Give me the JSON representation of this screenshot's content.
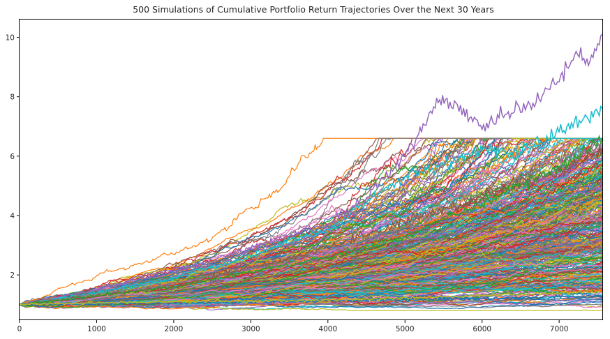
{
  "chart_data": {
    "type": "line",
    "title": "500 Simulations of Cumulative Portfolio Return Trajectories Over the Next 30 Years",
    "xlabel": "",
    "ylabel": "",
    "xlim": [
      0,
      7560
    ],
    "ylim": [
      0.5,
      10.6
    ],
    "xticks": [
      0,
      1000,
      2000,
      3000,
      4000,
      5000,
      6000,
      7000
    ],
    "yticks": [
      2,
      4,
      6,
      8,
      10
    ],
    "grid": false,
    "legend": "none",
    "n_simulations": 500,
    "series_colors": [
      "#1f77b4",
      "#ff7f0e",
      "#2ca02c",
      "#d62728",
      "#9467bd",
      "#8c564b",
      "#e377c2",
      "#7f7f7f",
      "#bcbd22",
      "#17becf"
    ],
    "highlight_paths": [
      {
        "color": "#9467bd",
        "x": [
          0,
          1000,
          2000,
          3000,
          4000,
          4500,
          5000,
          5450,
          5700,
          6000,
          6300,
          6700,
          7000,
          7200,
          7400,
          7560
        ],
        "y": [
          1.0,
          1.5,
          2.1,
          2.9,
          3.7,
          4.6,
          6.0,
          7.9,
          7.5,
          6.9,
          7.4,
          7.8,
          8.5,
          9.4,
          9.2,
          10.1
        ]
      },
      {
        "color": "#17becf",
        "x": [
          0,
          1000,
          2000,
          3000,
          3500,
          4000,
          4500,
          5000,
          5500,
          6000,
          6500,
          7000,
          7300,
          7560
        ],
        "y": [
          1.0,
          1.4,
          1.9,
          2.6,
          3.2,
          3.5,
          4.4,
          5.3,
          5.7,
          6.2,
          6.1,
          6.8,
          7.2,
          7.6
        ]
      },
      {
        "color": "#7f7f7f",
        "x": [
          0,
          2000,
          4000,
          5000,
          6000,
          6500,
          7000,
          7560
        ],
        "y": [
          1.0,
          1.7,
          2.8,
          3.6,
          4.9,
          5.2,
          6.0,
          6.3
        ]
      },
      {
        "color": "#8c564b",
        "x": [
          0,
          2000,
          4000,
          5000,
          6000,
          7000,
          7560
        ],
        "y": [
          1.0,
          1.6,
          2.9,
          3.8,
          4.6,
          5.5,
          6.2
        ]
      },
      {
        "color": "#2ca02c",
        "x": [
          0,
          2000,
          4000,
          5000,
          6000,
          7000,
          7560
        ],
        "y": [
          1.0,
          1.6,
          2.6,
          3.3,
          4.4,
          5.6,
          6.6
        ]
      },
      {
        "color": "#1f77b4",
        "x": [
          0,
          2000,
          4000,
          6000,
          7560
        ],
        "y": [
          1.0,
          1.05,
          1.12,
          1.2,
          1.3
        ]
      },
      {
        "color": "#bcbd22",
        "x": [
          0,
          2000,
          4000,
          6000,
          7560
        ],
        "y": [
          1.0,
          1.1,
          1.15,
          1.3,
          1.45
        ]
      }
    ]
  }
}
